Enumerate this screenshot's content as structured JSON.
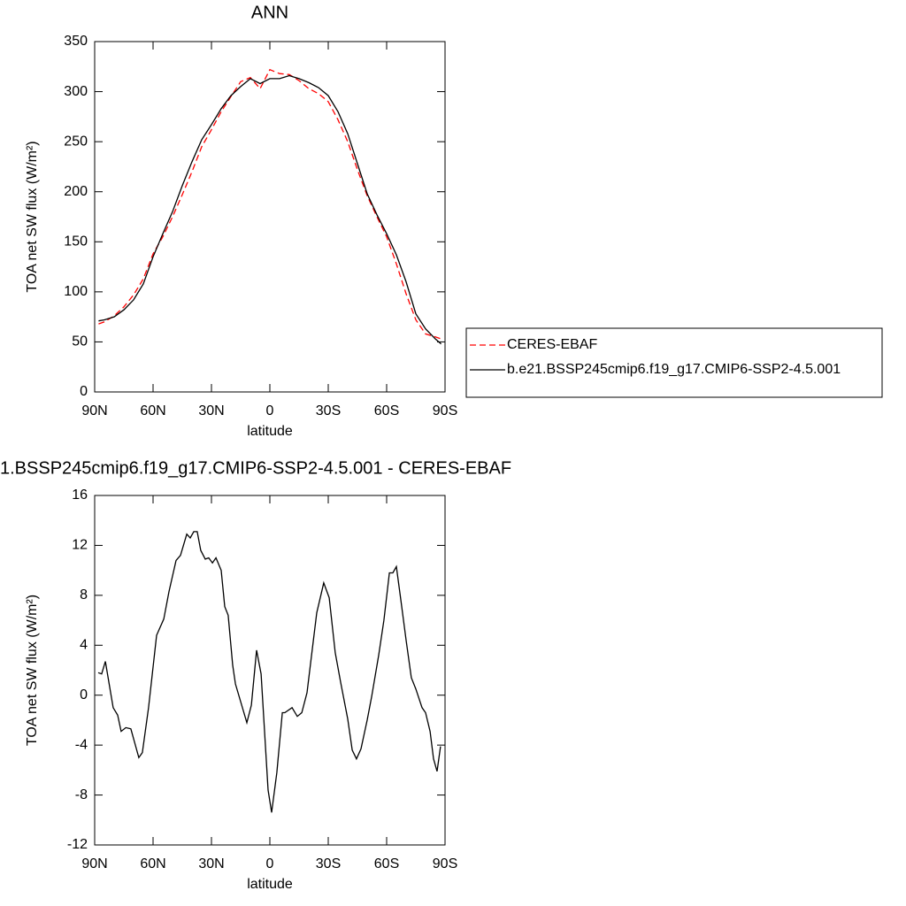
{
  "chart_data": [
    {
      "type": "line",
      "title": "ANN",
      "xlabel": "latitude",
      "ylabel": "TOA net SW flux (W/m²)",
      "x": [
        88,
        85,
        80,
        75,
        70,
        65,
        60,
        55,
        50,
        45,
        40,
        35,
        30,
        25,
        20,
        15,
        10,
        5,
        0,
        -5,
        -10,
        -15,
        -20,
        -25,
        -30,
        -35,
        -40,
        -45,
        -50,
        -55,
        -60,
        -65,
        -70,
        -75,
        -80,
        -85,
        -88
      ],
      "series": [
        {
          "name": "CERES-EBAF",
          "color": "#ff0000",
          "dashed": true,
          "values": [
            68,
            70,
            76,
            85,
            97,
            113,
            138,
            155,
            175,
            197,
            220,
            245,
            262,
            280,
            295,
            310,
            314,
            303,
            322,
            318,
            317,
            311,
            303,
            298,
            290,
            272,
            250,
            222,
            196,
            175,
            155,
            128,
            98,
            72,
            58,
            55,
            53
          ]
        },
        {
          "name": "b.e21.BSSP245cmip6.f19_g17.CMIP6-SSP2-4.5.001",
          "color": "#000000",
          "dashed": false,
          "values": [
            71,
            72,
            75,
            82,
            92,
            108,
            135,
            158,
            180,
            206,
            230,
            252,
            267,
            283,
            296,
            305,
            313,
            308,
            313,
            313,
            316,
            313,
            309,
            304,
            296,
            280,
            258,
            228,
            198,
            177,
            158,
            137,
            110,
            78,
            63,
            53,
            48
          ]
        }
      ],
      "xlim": [
        90,
        -90
      ],
      "xticks": [
        {
          "value": 90,
          "label": "90N"
        },
        {
          "value": 60,
          "label": "60N"
        },
        {
          "value": 30,
          "label": "30N"
        },
        0,
        {
          "value": -30,
          "label": "30S"
        },
        {
          "value": -60,
          "label": "60S"
        },
        {
          "value": -90,
          "label": "90S"
        }
      ],
      "ylim": [
        0,
        350
      ],
      "yticks": [
        0,
        50,
        100,
        150,
        200,
        250,
        300,
        350
      ],
      "legend": "right"
    },
    {
      "type": "line",
      "title": "1.BSSP245cmip6.f19_g17.CMIP6-SSP2-4.5.001 - CERES-EBAF",
      "xlabel": "latitude",
      "ylabel": "TOA net SW flux (W/m²)",
      "x": [
        88.2,
        86.4,
        84.5,
        80.5,
        78.2,
        76.4,
        74,
        71.4,
        67.3,
        65.5,
        62.3,
        58.2,
        54.5,
        51.8,
        48.2,
        45.9,
        42.7,
        40.9,
        39.1,
        37.3,
        35.5,
        33.2,
        31.4,
        29.5,
        27.7,
        25,
        23.2,
        21.4,
        19.1,
        17.7,
        11.8,
        9.5,
        6.8,
        4.5,
        0.9,
        -0.9,
        -3.6,
        -6.4,
        -7.7,
        -11.4,
        -14.1,
        -16.4,
        -19.1,
        -21.8,
        -24.1,
        -27.7,
        -30.5,
        -33.6,
        -36.4,
        -40,
        -42.3,
        -44.5,
        -46.8,
        -50,
        -52.3,
        -55.9,
        -58.6,
        -61.4,
        -63.2,
        -65,
        -67.3,
        -70,
        -72.7,
        -75,
        -78.2,
        -80,
        -82.3,
        -84.1,
        -85.9,
        -87.7
      ],
      "values": [
        1.8,
        1.7,
        2.7,
        -1.0,
        -1.6,
        -2.9,
        -2.6,
        -2.7,
        -5.0,
        -4.6,
        -1.0,
        4.8,
        6.1,
        8.3,
        10.8,
        11.2,
        12.9,
        12.6,
        13.1,
        13.1,
        11.6,
        10.9,
        11.0,
        10.6,
        11.0,
        10.0,
        7.1,
        6.4,
        2.4,
        0.9,
        -2.2,
        -0.8,
        3.6,
        1.7,
        -7.6,
        -9.4,
        -6.2,
        -1.4,
        -1.4,
        -1.0,
        -1.7,
        -1.4,
        0.2,
        3.7,
        6.6,
        9.0,
        7.8,
        3.4,
        1.0,
        -1.9,
        -4.4,
        -5.1,
        -4.3,
        -2.0,
        -0.1,
        3.2,
        6.0,
        9.8,
        9.8,
        10.3,
        7.6,
        4.4,
        1.4,
        0.5,
        -1.0,
        -1.4,
        -2.9,
        -5.1,
        -6.1,
        -4.1
      ],
      "color": "#000000",
      "xlim": [
        90,
        -90
      ],
      "xticks": [
        {
          "value": 90,
          "label": "90N"
        },
        {
          "value": 60,
          "label": "60N"
        },
        {
          "value": 30,
          "label": "30N"
        },
        0,
        {
          "value": -30,
          "label": "30S"
        },
        {
          "value": -60,
          "label": "60S"
        },
        {
          "value": -90,
          "label": "90S"
        }
      ],
      "ylim": [
        -12,
        16
      ],
      "yticks": [
        -12,
        -8,
        -4,
        0,
        4,
        8,
        12,
        16
      ]
    }
  ]
}
